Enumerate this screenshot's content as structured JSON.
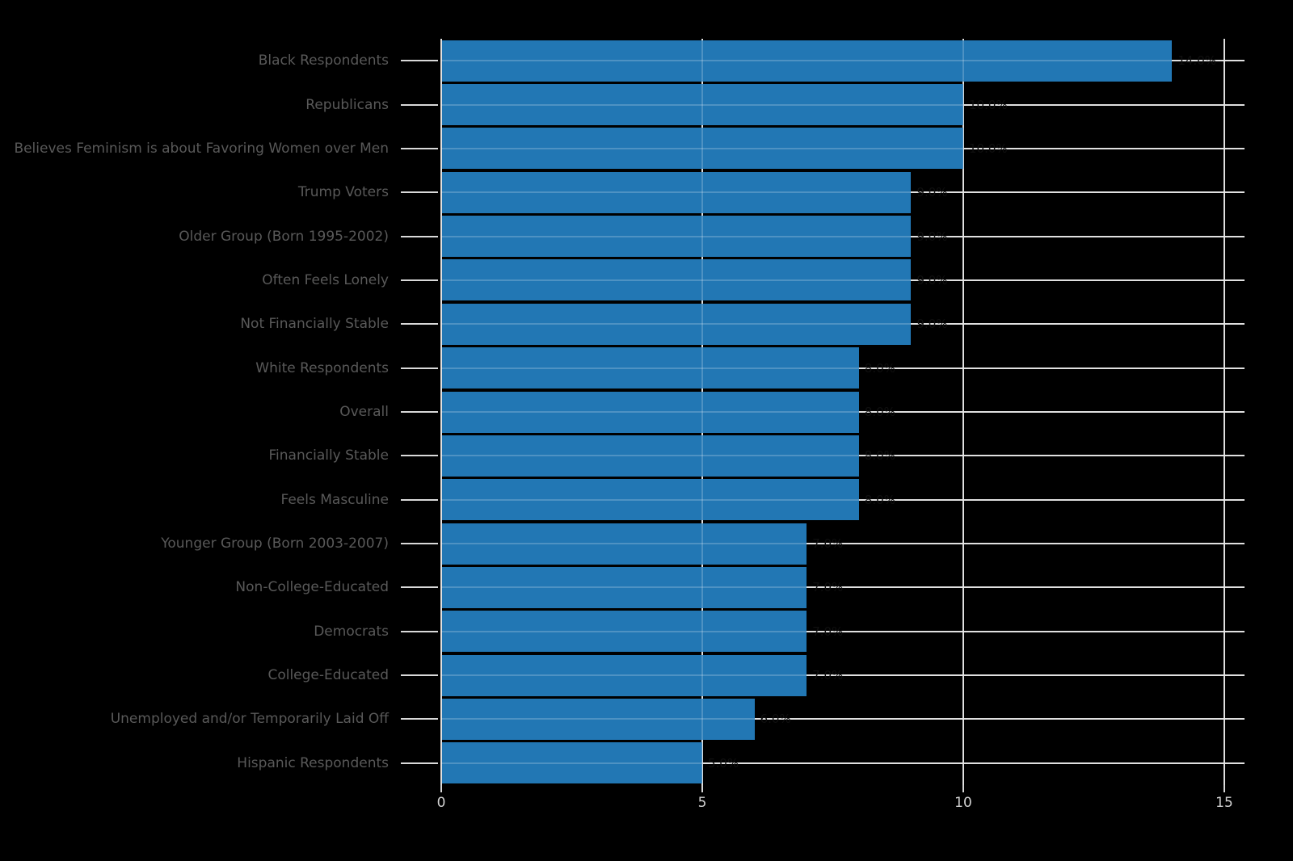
{
  "chart_data": {
    "type": "bar",
    "orientation": "horizontal",
    "title": "",
    "xlabel": "",
    "ylabel": "",
    "categories": [
      "Black Respondents",
      "Republicans",
      "Believes Feminism is about Favoring Women over Men",
      "Trump Voters",
      "Older Group (Born 1995-2002)",
      "Often Feels Lonely",
      "Not Financially Stable",
      "White Respondents",
      "Overall",
      "Financially Stable",
      "Feels Masculine",
      "Younger Group (Born 2003-2007)",
      "Non-College-Educated",
      "Democrats",
      "College-Educated",
      "Unemployed and/or Temporarily Laid Off",
      "Hispanic Respondents"
    ],
    "values": [
      14.0,
      10.0,
      10.0,
      9.0,
      9.0,
      9.0,
      9.0,
      8.0,
      8.0,
      8.0,
      8.0,
      7.0,
      7.0,
      7.0,
      7.0,
      6.0,
      5.0
    ],
    "value_labels": [
      "14.0%",
      "10.0%",
      "10.0%",
      "9.0%",
      "9.0%",
      "9.0%",
      "9.0%",
      "8.0%",
      "8.0%",
      "8.0%",
      "8.0%",
      "7.0%",
      "7.0%",
      "7.0%",
      "7.0%",
      "6.0%",
      "5.0%"
    ],
    "x_ticks": [
      {
        "value": 0,
        "label": "0"
      },
      {
        "value": 5,
        "label": "5"
      },
      {
        "value": 10,
        "label": "10"
      },
      {
        "value": 15,
        "label": "15"
      }
    ],
    "xlim": [
      0,
      15.4
    ],
    "grid": true,
    "legend_position": "none"
  },
  "colors": {
    "background": "#000000",
    "bar": "#2277b4",
    "gridline": "#d9d9d9",
    "gridline_over_bar": "rgba(255,255,255,0.20)",
    "category_label": "#595959",
    "value_label": "#0f0f0f",
    "x_tick_label": "#cfcfcf",
    "tick_mark": "#d9d9d9"
  }
}
